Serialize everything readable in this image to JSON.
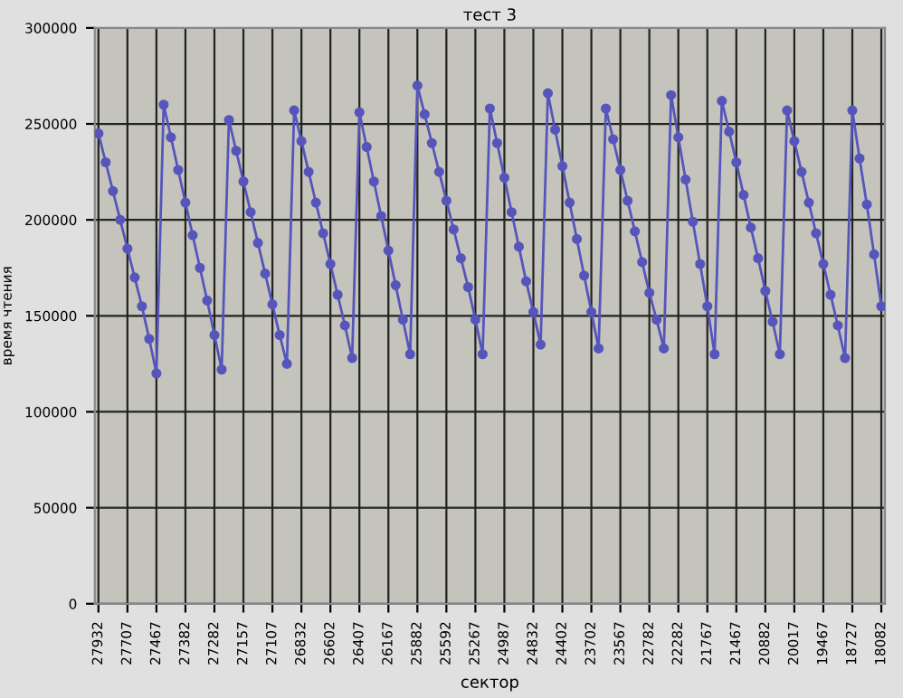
{
  "chart_data": {
    "type": "line",
    "title": "тест 3",
    "xlabel": "сектор",
    "ylabel": "время чтения",
    "categories": [
      "27932",
      null,
      null,
      null,
      "27707",
      null,
      null,
      null,
      "27467",
      null,
      null,
      null,
      "27382",
      null,
      null,
      null,
      "27282",
      null,
      null,
      null,
      "27157",
      null,
      null,
      null,
      "27107",
      null,
      null,
      null,
      "26832",
      null,
      null,
      null,
      "26602",
      null,
      null,
      null,
      "26407",
      null,
      null,
      null,
      "26167",
      null,
      null,
      null,
      "25882",
      null,
      null,
      null,
      "25592",
      null,
      null,
      null,
      "25267",
      null,
      null,
      null,
      "24987",
      null,
      null,
      null,
      "24832",
      null,
      null,
      null,
      "24402",
      null,
      null,
      null,
      "23702",
      null,
      null,
      null,
      "23567",
      null,
      null,
      null,
      "22782",
      null,
      null,
      null,
      "22282",
      null,
      null,
      null,
      "21767",
      null,
      null,
      null,
      "21467",
      null,
      null,
      null,
      "20882",
      null,
      null,
      null,
      "20017",
      null,
      null,
      null,
      "19467",
      null,
      null,
      null,
      "18727",
      null,
      null,
      null,
      "18082"
    ],
    "series": [
      {
        "color": "#5555bb",
        "values": [
          245000,
          230000,
          215000,
          200000,
          185000,
          170000,
          155000,
          138000,
          120000,
          260000,
          243000,
          226000,
          209000,
          192000,
          175000,
          158000,
          140000,
          122000,
          252000,
          236000,
          220000,
          204000,
          188000,
          172000,
          156000,
          140000,
          125000,
          257000,
          241000,
          225000,
          209000,
          193000,
          177000,
          161000,
          145000,
          128000,
          256000,
          238000,
          220000,
          202000,
          184000,
          166000,
          148000,
          130000,
          270000,
          255000,
          240000,
          225000,
          210000,
          195000,
          180000,
          165000,
          148000,
          130000,
          258000,
          240000,
          222000,
          204000,
          186000,
          168000,
          152000,
          135000,
          266000,
          247000,
          228000,
          209000,
          190000,
          171000,
          152000,
          133000,
          258000,
          242000,
          226000,
          210000,
          194000,
          178000,
          162000,
          148000,
          133000,
          265000,
          243000,
          221000,
          199000,
          177000,
          155000,
          130000,
          262000,
          246000,
          230000,
          213000,
          196000,
          180000,
          163000,
          147000,
          130000,
          257000,
          241000,
          225000,
          209000,
          193000,
          177000,
          161000,
          145000,
          128000,
          257000,
          232000,
          208000,
          182000,
          155000
        ]
      }
    ],
    "ylim": [
      0,
      300000
    ],
    "yticks": [
      0,
      50000,
      100000,
      150000,
      200000,
      250000,
      300000
    ],
    "grid": true,
    "marker": "circle",
    "line_style": "solid",
    "legend": false
  }
}
